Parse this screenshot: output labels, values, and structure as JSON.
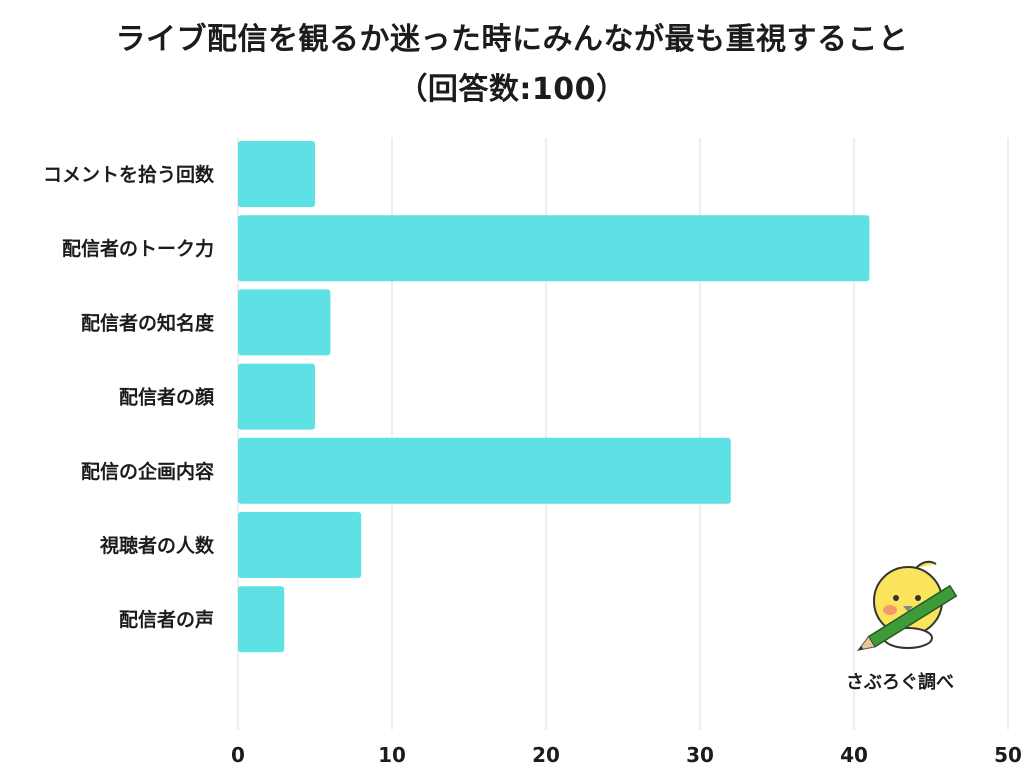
{
  "chart_data": {
    "type": "bar",
    "orientation": "horizontal",
    "title": "ライブ配信を観るか迷った時にみんなが最も重視すること",
    "subtitle": "（回答数:100）",
    "categories": [
      "コメントを拾う回数",
      "配信者のトーク力",
      "配信者の知名度",
      "配信者の顔",
      "配信の企画内容",
      "視聴者の人数",
      "配信者の声"
    ],
    "values": [
      5,
      41,
      6,
      5,
      32,
      8,
      3
    ],
    "xlim": [
      0,
      50
    ],
    "xticks": [
      "0",
      "10",
      "20",
      "30",
      "40",
      "50"
    ],
    "grid": true,
    "bar_color": "#5ee1e4",
    "grid_color": "#dddddd"
  },
  "credit": "さぶろぐ調べ"
}
